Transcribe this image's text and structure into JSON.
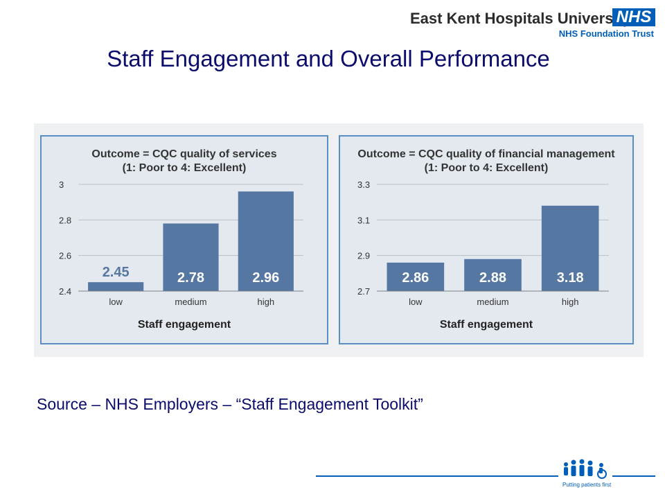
{
  "header": {
    "org_name": "East Kent Hospitals University",
    "nhs_badge": "NHS",
    "org_subtitle": "NHS Foundation Trust"
  },
  "slide": {
    "title": "Staff Engagement and Overall Performance",
    "source": "Source – NHS Employers – “Staff Engagement Toolkit”"
  },
  "footer": {
    "tagline": "Putting patients first",
    "logo_icon": "people-group-icon"
  },
  "colors": {
    "bar": "#5677a2",
    "panel_border": "#5b8fc4",
    "panel_bg": "#e3e9ef",
    "title_text": "#0b0b6b",
    "nhs_blue": "#005eb8"
  },
  "chart_data": [
    {
      "type": "bar",
      "title": "Outcome = CQC quality of services",
      "subtitle": "(1: Poor to 4: Excellent)",
      "xlabel": "Staff engagement",
      "ylabel": "",
      "categories": [
        "low",
        "medium",
        "high"
      ],
      "values": [
        2.45,
        2.78,
        2.96
      ],
      "data_labels": [
        "2.45",
        "2.78",
        "2.96"
      ],
      "ylim": [
        2.4,
        3.0
      ],
      "yticks": [
        "2.4",
        "2.6",
        "2.8",
        "3"
      ],
      "ytick_values": [
        2.4,
        2.6,
        2.8,
        3.0
      ],
      "grid": true
    },
    {
      "type": "bar",
      "title": "Outcome = CQC quality of financial management",
      "subtitle": "(1: Poor to 4: Excellent)",
      "xlabel": "Staff engagement",
      "ylabel": "",
      "categories": [
        "low",
        "medium",
        "high"
      ],
      "values": [
        2.86,
        2.88,
        3.18
      ],
      "data_labels": [
        "2.86",
        "2.88",
        "3.18"
      ],
      "ylim": [
        2.7,
        3.3
      ],
      "yticks": [
        "2.7",
        "2.9",
        "3.1",
        "3.3"
      ],
      "ytick_values": [
        2.7,
        2.9,
        3.1,
        3.3
      ],
      "grid": true
    }
  ]
}
